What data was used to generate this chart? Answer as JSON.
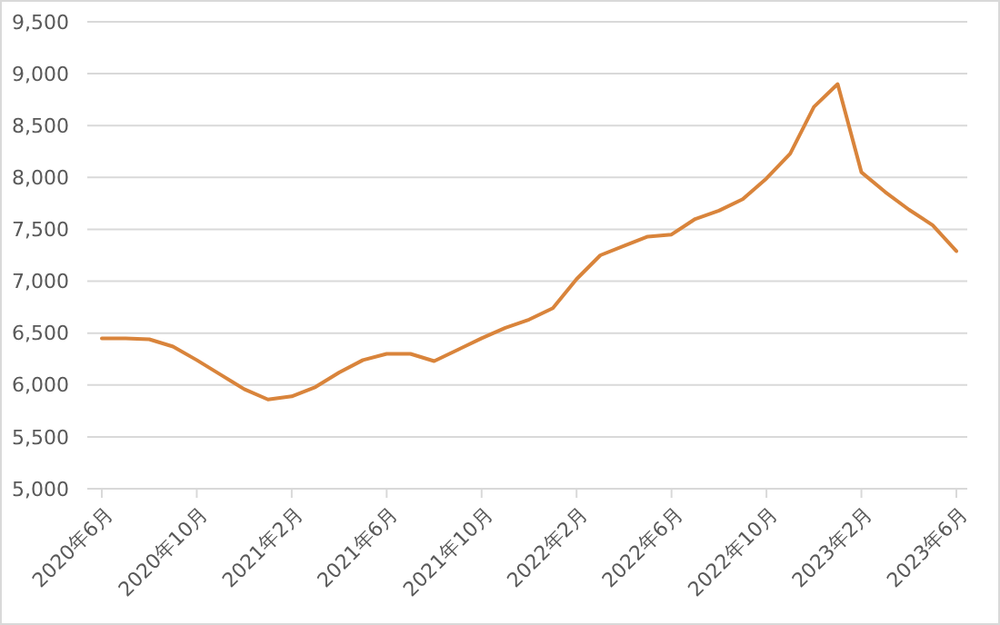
{
  "chart_data": {
    "type": "line",
    "categories": [
      "2020年6月",
      null,
      null,
      null,
      "2020年10月",
      null,
      null,
      null,
      "2021年2月",
      null,
      null,
      null,
      "2021年6月",
      null,
      null,
      null,
      "2021年10月",
      null,
      null,
      null,
      "2022年2月",
      null,
      null,
      null,
      "2022年6月",
      null,
      null,
      null,
      "2022年10月",
      null,
      null,
      null,
      "2023年2月",
      null,
      null,
      null,
      "2023年6月"
    ],
    "series": [
      {
        "color": "#d9843b",
        "values": [
          6450,
          6450,
          6440,
          6370,
          6240,
          6100,
          5960,
          5860,
          5890,
          5980,
          6120,
          6240,
          6300,
          6300,
          6230,
          6340,
          6450,
          6550,
          6630,
          6740,
          7020,
          7250,
          7340,
          7430,
          7450,
          7600,
          7680,
          7790,
          7990,
          8230,
          8680,
          8900,
          8050,
          7860,
          7690,
          7540,
          7290
        ]
      }
    ],
    "ylim": [
      5000,
      9500
    ],
    "yticks": [
      {
        "value": 5000,
        "label": "5,000"
      },
      {
        "value": 5500,
        "label": "5,500"
      },
      {
        "value": 6000,
        "label": "6,000"
      },
      {
        "value": 6500,
        "label": "6,500"
      },
      {
        "value": 7000,
        "label": "7,000"
      },
      {
        "value": 7500,
        "label": "7,500"
      },
      {
        "value": 8000,
        "label": "8,000"
      },
      {
        "value": 8500,
        "label": "8,500"
      },
      {
        "value": 9000,
        "label": "9,000"
      },
      {
        "value": 9500,
        "label": "9,500"
      }
    ],
    "grid": "y"
  }
}
